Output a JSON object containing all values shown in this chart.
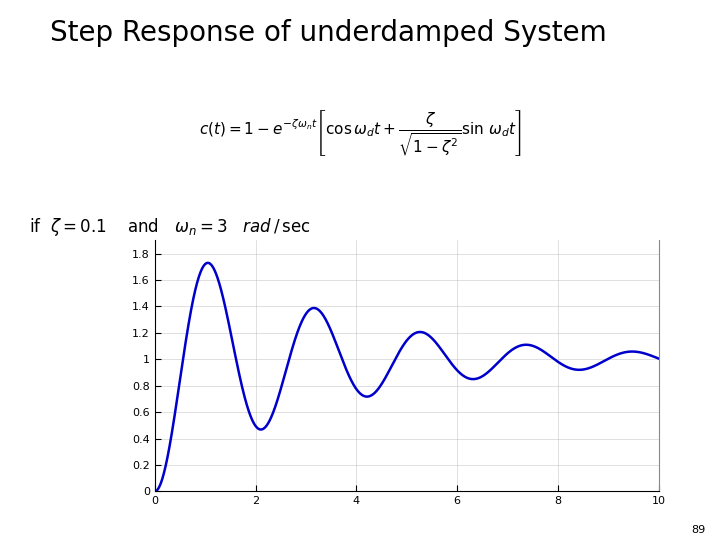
{
  "title": "Step Response of underdamped System",
  "title_fontsize": 20,
  "zeta": 0.1,
  "omega_n": 3,
  "t_start": 0,
  "t_end": 10,
  "t_points": 3000,
  "line_color": "#0000CC",
  "line_width": 1.8,
  "xlim": [
    0,
    10
  ],
  "ylim": [
    0,
    1.9
  ],
  "yticks": [
    0,
    0.2,
    0.4,
    0.6,
    0.8,
    1,
    1.2,
    1.4,
    1.6,
    1.8
  ],
  "xticks": [
    0,
    2,
    4,
    6,
    8,
    10
  ],
  "page_number": "89",
  "bg_color": "#ffffff",
  "formula_fontsize": 11,
  "condition_fontsize": 12
}
